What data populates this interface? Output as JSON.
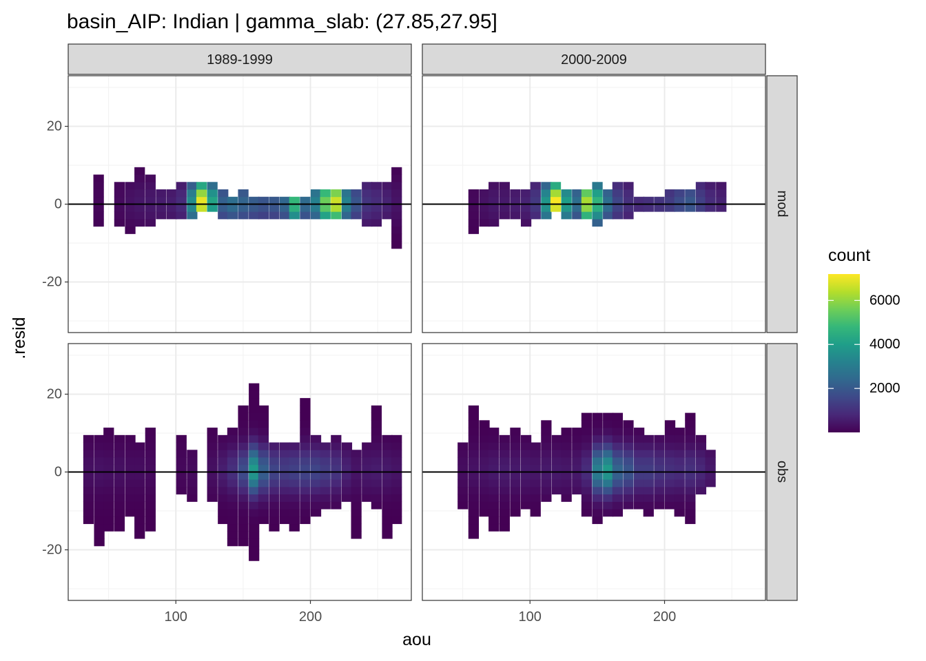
{
  "chart_data": {
    "type": "heatmap",
    "title": "basin_AIP: Indian | gamma_slab: (27.85,27.95]",
    "xlabel": "aou",
    "ylabel": ".resid",
    "xlim": [
      20,
      275
    ],
    "ylim": [
      -33,
      33
    ],
    "x_ticks": [
      100,
      200
    ],
    "x_tick_labels": [
      "100",
      "200"
    ],
    "y_ticks": [
      -20,
      0,
      20
    ],
    "y_tick_labels": [
      "-20",
      "0",
      "20"
    ],
    "grid": true,
    "legend": {
      "title": "count",
      "position": "right",
      "ticks": [
        2000,
        4000,
        6000
      ],
      "tick_labels": [
        "2000",
        "4000",
        "6000"
      ],
      "range": [
        1,
        7200
      ],
      "colormap": "viridis"
    },
    "reference_line": {
      "y": 0,
      "color": "#000000"
    },
    "bin_width_x": 7.6,
    "bin_height_y": 1.9,
    "facet_cols": [
      "1989-1999",
      "2000-2009"
    ],
    "facet_rows": [
      "mod",
      "obs"
    ],
    "colors": {
      "panel_background": "#ffffff",
      "strip_fill": "#d9d9d9",
      "grid_major": "#ebebeb",
      "axis_text": "#4d4d4d"
    },
    "panels": [
      {
        "col": "1989-1999",
        "row": "mod",
        "columns": [
          {
            "x": 42.5,
            "y_min": -5.7,
            "y_max": 7.6,
            "peak": 120
          },
          {
            "x": 58,
            "y_min": -5.7,
            "y_max": 5.7,
            "peak": 200
          },
          {
            "x": 66,
            "y_min": -7.6,
            "y_max": 5.7,
            "peak": 350
          },
          {
            "x": 73,
            "y_min": -5.7,
            "y_max": 9.5,
            "peak": 450
          },
          {
            "x": 81,
            "y_min": -5.7,
            "y_max": 7.6,
            "peak": 500
          },
          {
            "x": 89,
            "y_min": -3.8,
            "y_max": 3.8,
            "peak": 550
          },
          {
            "x": 97,
            "y_min": -3.8,
            "y_max": 3.8,
            "peak": 600
          },
          {
            "x": 104,
            "y_min": -3.8,
            "y_max": 5.7,
            "peak": 900
          },
          {
            "x": 112,
            "y_min": -3.8,
            "y_max": 5.7,
            "peak": 3500
          },
          {
            "x": 119,
            "y_min": -1.9,
            "y_max": 5.7,
            "peak": 7000
          },
          {
            "x": 127,
            "y_min": -1.9,
            "y_max": 5.7,
            "peak": 4200
          },
          {
            "x": 135,
            "y_min": -3.8,
            "y_max": 3.8,
            "peak": 2200
          },
          {
            "x": 142,
            "y_min": -3.8,
            "y_max": 1.9,
            "peak": 2600
          },
          {
            "x": 150,
            "y_min": -3.8,
            "y_max": 3.8,
            "peak": 2300
          },
          {
            "x": 158,
            "y_min": -3.8,
            "y_max": 1.9,
            "peak": 2100
          },
          {
            "x": 165,
            "y_min": -3.8,
            "y_max": 1.9,
            "peak": 1900
          },
          {
            "x": 173,
            "y_min": -3.8,
            "y_max": 1.9,
            "peak": 2000
          },
          {
            "x": 181,
            "y_min": -3.8,
            "y_max": 1.9,
            "peak": 2400
          },
          {
            "x": 188,
            "y_min": -3.8,
            "y_max": 1.9,
            "peak": 4800
          },
          {
            "x": 196,
            "y_min": -3.8,
            "y_max": 1.9,
            "peak": 2500
          },
          {
            "x": 204,
            "y_min": -3.8,
            "y_max": 3.8,
            "peak": 3200
          },
          {
            "x": 211,
            "y_min": -3.8,
            "y_max": 3.8,
            "peak": 5600
          },
          {
            "x": 219,
            "y_min": -3.8,
            "y_max": 3.8,
            "peak": 6700
          },
          {
            "x": 227,
            "y_min": -3.8,
            "y_max": 3.8,
            "peak": 3200
          },
          {
            "x": 234,
            "y_min": -3.8,
            "y_max": 3.8,
            "peak": 1900
          },
          {
            "x": 242,
            "y_min": -5.7,
            "y_max": 5.7,
            "peak": 1100
          },
          {
            "x": 249,
            "y_min": -5.7,
            "y_max": 5.7,
            "peak": 900
          },
          {
            "x": 257,
            "y_min": -3.8,
            "y_max": 5.7,
            "peak": 700
          },
          {
            "x": 264,
            "y_min": -11.4,
            "y_max": 9.5,
            "peak": 400
          }
        ]
      },
      {
        "col": "2000-2009",
        "row": "mod",
        "columns": [
          {
            "x": 58,
            "y_min": -7.6,
            "y_max": 3.8,
            "peak": 150
          },
          {
            "x": 66,
            "y_min": -5.7,
            "y_max": 3.8,
            "peak": 350
          },
          {
            "x": 73,
            "y_min": -5.7,
            "y_max": 5.7,
            "peak": 500
          },
          {
            "x": 81,
            "y_min": -3.8,
            "y_max": 5.7,
            "peak": 500
          },
          {
            "x": 89,
            "y_min": -3.8,
            "y_max": 3.8,
            "peak": 600
          },
          {
            "x": 97,
            "y_min": -5.7,
            "y_max": 3.8,
            "peak": 700
          },
          {
            "x": 104,
            "y_min": -3.8,
            "y_max": 5.7,
            "peak": 1200
          },
          {
            "x": 112,
            "y_min": -3.8,
            "y_max": 5.7,
            "peak": 3800
          },
          {
            "x": 119,
            "y_min": -1.9,
            "y_max": 5.7,
            "peak": 7200
          },
          {
            "x": 127,
            "y_min": -3.8,
            "y_max": 3.8,
            "peak": 4000
          },
          {
            "x": 135,
            "y_min": -3.8,
            "y_max": 3.8,
            "peak": 2600
          },
          {
            "x": 142,
            "y_min": -3.8,
            "y_max": 3.8,
            "peak": 6300
          },
          {
            "x": 150,
            "y_min": -5.7,
            "y_max": 5.7,
            "peak": 4700
          },
          {
            "x": 158,
            "y_min": -3.8,
            "y_max": 3.8,
            "peak": 2600
          },
          {
            "x": 165,
            "y_min": -3.8,
            "y_max": 5.7,
            "peak": 1500
          },
          {
            "x": 173,
            "y_min": -3.8,
            "y_max": 5.7,
            "peak": 1000
          },
          {
            "x": 181,
            "y_min": -1.9,
            "y_max": 1.9,
            "peak": 900
          },
          {
            "x": 188,
            "y_min": -1.9,
            "y_max": 1.9,
            "peak": 1000
          },
          {
            "x": 196,
            "y_min": -1.9,
            "y_max": 1.9,
            "peak": 1100
          },
          {
            "x": 204,
            "y_min": -1.9,
            "y_max": 3.8,
            "peak": 1300
          },
          {
            "x": 211,
            "y_min": -1.9,
            "y_max": 3.8,
            "peak": 1700
          },
          {
            "x": 219,
            "y_min": -1.9,
            "y_max": 3.8,
            "peak": 2000
          },
          {
            "x": 227,
            "y_min": -1.9,
            "y_max": 5.7,
            "peak": 1400
          },
          {
            "x": 234,
            "y_min": -1.9,
            "y_max": 5.7,
            "peak": 900
          },
          {
            "x": 242,
            "y_min": -1.9,
            "y_max": 5.7,
            "peak": 700
          }
        ]
      },
      {
        "col": "1989-1999",
        "row": "obs",
        "columns": [
          {
            "x": 35,
            "y_min": -13.3,
            "y_max": 9.5,
            "peak": 300
          },
          {
            "x": 43,
            "y_min": -19,
            "y_max": 9.5,
            "peak": 350
          },
          {
            "x": 50,
            "y_min": -15.2,
            "y_max": 11.4,
            "peak": 300
          },
          {
            "x": 58,
            "y_min": -15.2,
            "y_max": 9.5,
            "peak": 300
          },
          {
            "x": 66,
            "y_min": -11.4,
            "y_max": 9.5,
            "peak": 250
          },
          {
            "x": 73,
            "y_min": -17.1,
            "y_max": 7.6,
            "peak": 250
          },
          {
            "x": 81,
            "y_min": -15.2,
            "y_max": 11.4,
            "peak": 200
          },
          {
            "x": 104,
            "y_min": -5.7,
            "y_max": 9.5,
            "peak": 150
          },
          {
            "x": 112,
            "y_min": -7.6,
            "y_max": 5.7,
            "peak": 200
          },
          {
            "x": 127,
            "y_min": -7.6,
            "y_max": 11.4,
            "peak": 300
          },
          {
            "x": 135,
            "y_min": -13.3,
            "y_max": 9.5,
            "peak": 600
          },
          {
            "x": 142,
            "y_min": -19,
            "y_max": 11.4,
            "peak": 1000
          },
          {
            "x": 150,
            "y_min": -19,
            "y_max": 17.1,
            "peak": 1700
          },
          {
            "x": 158,
            "y_min": -22.8,
            "y_max": 22.8,
            "peak": 3900
          },
          {
            "x": 165,
            "y_min": -13.3,
            "y_max": 17.1,
            "peak": 2200
          },
          {
            "x": 173,
            "y_min": -15.2,
            "y_max": 7.6,
            "peak": 1500
          },
          {
            "x": 181,
            "y_min": -13.3,
            "y_max": 7.6,
            "peak": 1300
          },
          {
            "x": 188,
            "y_min": -15.2,
            "y_max": 7.6,
            "peak": 1400
          },
          {
            "x": 196,
            "y_min": -13.3,
            "y_max": 19,
            "peak": 1500
          },
          {
            "x": 204,
            "y_min": -11.4,
            "y_max": 9.5,
            "peak": 1500
          },
          {
            "x": 211,
            "y_min": -9.5,
            "y_max": 7.6,
            "peak": 1300
          },
          {
            "x": 219,
            "y_min": -9.5,
            "y_max": 9.5,
            "peak": 1100
          },
          {
            "x": 227,
            "y_min": -7.6,
            "y_max": 7.6,
            "peak": 700
          },
          {
            "x": 234,
            "y_min": -17.1,
            "y_max": 5.7,
            "peak": 400
          },
          {
            "x": 242,
            "y_min": -7.6,
            "y_max": 7.6,
            "peak": 500
          },
          {
            "x": 249,
            "y_min": -9.5,
            "y_max": 17.1,
            "peak": 550
          },
          {
            "x": 257,
            "y_min": -17.1,
            "y_max": 9.5,
            "peak": 500
          },
          {
            "x": 264,
            "y_min": -13.3,
            "y_max": 9.5,
            "peak": 400
          }
        ]
      },
      {
        "col": "2000-2009",
        "row": "obs",
        "columns": [
          {
            "x": 50,
            "y_min": -9.5,
            "y_max": 7.6,
            "peak": 250
          },
          {
            "x": 58,
            "y_min": -17.1,
            "y_max": 17.1,
            "peak": 350
          },
          {
            "x": 66,
            "y_min": -11.4,
            "y_max": 13.3,
            "peak": 400
          },
          {
            "x": 73,
            "y_min": -15.2,
            "y_max": 11.4,
            "peak": 500
          },
          {
            "x": 81,
            "y_min": -15.2,
            "y_max": 9.5,
            "peak": 550
          },
          {
            "x": 89,
            "y_min": -11.4,
            "y_max": 11.4,
            "peak": 500
          },
          {
            "x": 97,
            "y_min": -9.5,
            "y_max": 9.5,
            "peak": 500
          },
          {
            "x": 104,
            "y_min": -11.4,
            "y_max": 7.6,
            "peak": 450
          },
          {
            "x": 112,
            "y_min": -7.6,
            "y_max": 13.3,
            "peak": 500
          },
          {
            "x": 120,
            "y_min": -5.7,
            "y_max": 9.5,
            "peak": 500
          },
          {
            "x": 127,
            "y_min": -7.6,
            "y_max": 11.4,
            "peak": 450
          },
          {
            "x": 135,
            "y_min": -5.7,
            "y_max": 11.4,
            "peak": 500
          },
          {
            "x": 142,
            "y_min": -11.4,
            "y_max": 15.2,
            "peak": 900
          },
          {
            "x": 150,
            "y_min": -13.3,
            "y_max": 15.2,
            "peak": 3100
          },
          {
            "x": 158,
            "y_min": -11.4,
            "y_max": 15.2,
            "peak": 3900
          },
          {
            "x": 165,
            "y_min": -11.4,
            "y_max": 15.2,
            "peak": 2300
          },
          {
            "x": 173,
            "y_min": -9.5,
            "y_max": 13.3,
            "peak": 1900
          },
          {
            "x": 181,
            "y_min": -9.5,
            "y_max": 11.4,
            "peak": 1300
          },
          {
            "x": 188,
            "y_min": -11.4,
            "y_max": 9.5,
            "peak": 1300
          },
          {
            "x": 196,
            "y_min": -9.5,
            "y_max": 9.5,
            "peak": 1100
          },
          {
            "x": 204,
            "y_min": -9.5,
            "y_max": 13.3,
            "peak": 1000
          },
          {
            "x": 211,
            "y_min": -11.4,
            "y_max": 11.4,
            "peak": 900
          },
          {
            "x": 219,
            "y_min": -13.3,
            "y_max": 15.2,
            "peak": 1000
          },
          {
            "x": 227,
            "y_min": -5.7,
            "y_max": 9.5,
            "peak": 800
          },
          {
            "x": 234,
            "y_min": -3.8,
            "y_max": 5.7,
            "peak": 500
          }
        ]
      }
    ]
  }
}
